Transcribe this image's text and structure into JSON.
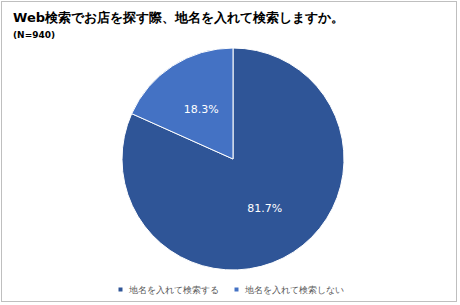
{
  "chart_data": {
    "type": "pie",
    "title": "Web検索でお店を探す際、地名を入れて検索しますか。",
    "subtitle": "(N=940)",
    "categories": [
      "地名を入れて検索する",
      "地名を入れて検索しない"
    ],
    "values": [
      81.7,
      18.3
    ],
    "value_labels": [
      "81.7%",
      "18.3%"
    ],
    "colors": [
      "#2f5597",
      "#4472c4"
    ],
    "data_labels": true,
    "legend": "bottom"
  }
}
